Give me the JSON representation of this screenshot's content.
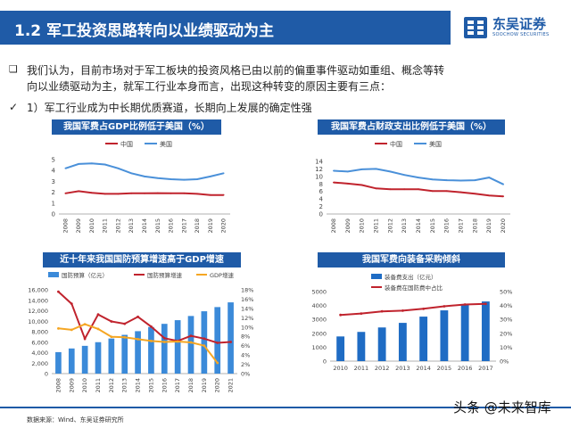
{
  "header": {
    "title": "1.2 军工投资思路转向以业绩驱动为主",
    "logo_cn": "东吴证券",
    "logo_en": "SOOCHOW SECURITIES"
  },
  "body": {
    "bullet_symbol": "❑",
    "paragraph": "我们认为，目前市场对于军工板块的投资风格已由以前的偏重事件驱动如重组、概念等转向以业绩驱动为主，就军工行业本身而言，出现这种转变的原因主要有三点：",
    "check_symbol": "✓",
    "sub_point": "1）军工行业成为中长期优质赛道，长期向上发展的确定性强"
  },
  "footer": {
    "source": "数据来源：Wind、东吴证券研究所",
    "watermark": "头条 @未来智库"
  },
  "colors": {
    "brand_blue": "#1f5ba7",
    "china_red": "#c0232d",
    "usa_blue": "#4a90d9",
    "bar_blue": "#3b8ad9",
    "gdp_orange": "#f5a623"
  },
  "chart_data": [
    {
      "type": "line",
      "title": "我国军费占GDP比例低于美国（%）",
      "x": [
        "2008",
        "2009",
        "2010",
        "2011",
        "2012",
        "2013",
        "2014",
        "2015",
        "2016",
        "2017",
        "2018",
        "2019",
        "2020"
      ],
      "ylim": [
        0,
        5
      ],
      "yticks": [
        "0",
        "1",
        "2",
        "3",
        "4",
        "5"
      ],
      "legend": "top-center",
      "series": [
        {
          "name": "中国",
          "color": "#c0232d",
          "values": [
            1.9,
            2.1,
            1.95,
            1.85,
            1.85,
            1.9,
            1.9,
            1.92,
            1.9,
            1.9,
            1.85,
            1.75,
            1.75
          ]
        },
        {
          "name": "美国",
          "color": "#4a90d9",
          "values": [
            4.2,
            4.6,
            4.65,
            4.55,
            4.2,
            3.75,
            3.45,
            3.3,
            3.2,
            3.15,
            3.2,
            3.45,
            3.75
          ]
        }
      ]
    },
    {
      "type": "line",
      "title": "我国军费占财政支出比例低于美国（%）",
      "x": [
        "2008",
        "2009",
        "2010",
        "2011",
        "2012",
        "2013",
        "2014",
        "2015",
        "2016",
        "2017",
        "2018",
        "2019",
        "2020"
      ],
      "ylim": [
        0,
        14
      ],
      "yticks": [
        "0",
        "2",
        "4",
        "6",
        "8",
        "10",
        "12",
        "14"
      ],
      "legend": "top-center",
      "series": [
        {
          "name": "中国",
          "color": "#c0232d",
          "values": [
            8.4,
            8.1,
            7.7,
            6.8,
            6.6,
            6.6,
            6.6,
            6.1,
            6.1,
            5.8,
            5.4,
            4.9,
            4.7
          ]
        },
        {
          "name": "美国",
          "color": "#4a90d9",
          "values": [
            11.5,
            11.3,
            11.9,
            12.0,
            11.3,
            10.4,
            9.7,
            9.2,
            9.0,
            8.9,
            9.0,
            9.7,
            7.9
          ]
        }
      ]
    },
    {
      "type": "bar",
      "title": "近十年来我国国防预算增速高于GDP增速",
      "categories": [
        "2008",
        "2009",
        "2010",
        "2011",
        "2012",
        "2013",
        "2014",
        "2015",
        "2016",
        "2017",
        "2018",
        "2019",
        "2020",
        "2021"
      ],
      "ylim": [
        0,
        16000
      ],
      "yticks": [
        "0",
        "2,000",
        "4,000",
        "6,000",
        "8,000",
        "10,000",
        "12,000",
        "14,000",
        "16,000"
      ],
      "y2lim": [
        0,
        18
      ],
      "y2ticks": [
        "0%",
        "2%",
        "4%",
        "6%",
        "8%",
        "10%",
        "12%",
        "14%",
        "16%",
        "18%"
      ],
      "legend": "top",
      "series": [
        {
          "name": "国防预算（亿元）",
          "kind": "bar",
          "color": "#3b8ad9",
          "values": [
            4100,
            4800,
            5300,
            6000,
            6700,
            7400,
            8100,
            8900,
            9500,
            10200,
            11000,
            11900,
            12700,
            13600
          ]
        },
        {
          "name": "国防预算增速",
          "kind": "line",
          "axis": "right",
          "color": "#c0232d",
          "values": [
            17.6,
            15.0,
            7.5,
            12.7,
            11.2,
            10.7,
            12.2,
            10.1,
            7.6,
            7.0,
            8.1,
            7.5,
            6.6,
            6.8
          ]
        },
        {
          "name": "GDP增速",
          "kind": "line",
          "axis": "right",
          "color": "#f5a623",
          "values": [
            9.7,
            9.4,
            10.6,
            9.6,
            7.9,
            7.8,
            7.4,
            7.0,
            6.8,
            6.9,
            6.7,
            6.0,
            2.3,
            null
          ]
        }
      ]
    },
    {
      "type": "bar",
      "title": "我国军费向装备采购倾斜",
      "categories": [
        "2010",
        "2011",
        "2012",
        "2013",
        "2014",
        "2015",
        "2016",
        "2017"
      ],
      "ylim": [
        0,
        5000
      ],
      "yticks": [
        "0",
        "1000",
        "2000",
        "3000",
        "4000",
        "5000"
      ],
      "y2lim": [
        0,
        50
      ],
      "y2ticks": [
        "0%",
        "10%",
        "20%",
        "30%",
        "40%",
        "50%"
      ],
      "legend": "top",
      "series": [
        {
          "name": "装备费支出（亿元）",
          "kind": "bar",
          "color": "#1f6cc4",
          "values": [
            1774,
            2100,
            2420,
            2750,
            3200,
            3650,
            4100,
            4290
          ]
        },
        {
          "name": "装备费在国防费中占比",
          "kind": "line",
          "axis": "right",
          "color": "#c0232d",
          "values": [
            33.2,
            34.2,
            35.8,
            36.3,
            37.6,
            39.4,
            40.7,
            41.2
          ]
        }
      ]
    }
  ]
}
